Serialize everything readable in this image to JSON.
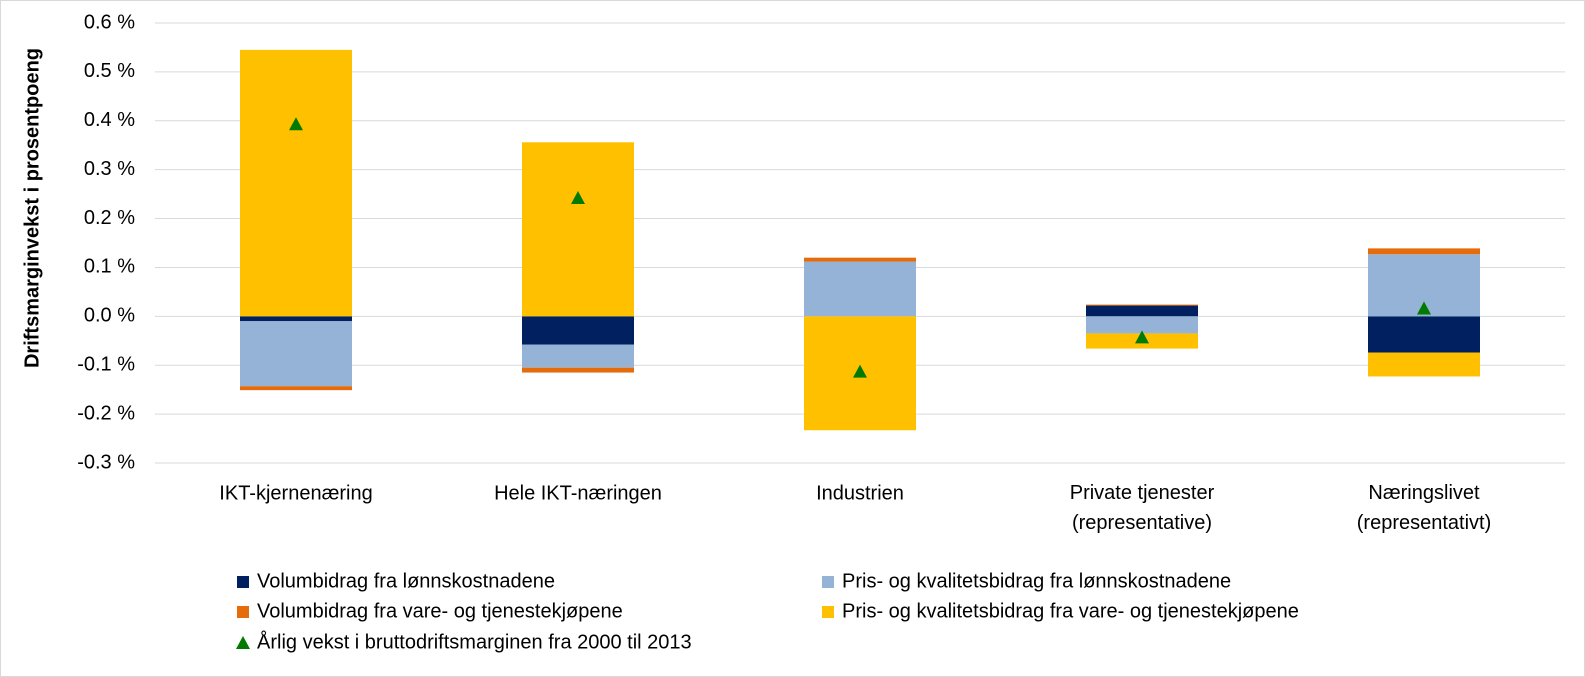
{
  "chart_data": {
    "type": "bar",
    "stacked": true,
    "y_label": "Driftsmarginvekst i prosentpoeng",
    "categories": [
      "IKT-kjernenæring",
      "Hele IKT-næringen",
      "Industrien",
      "Private tjenester\n(representative)",
      "Næringslivet\n(representativt)"
    ],
    "series": [
      {
        "name": "Volumbidrag fra lønnskostnadene",
        "color": "#002060",
        "values": [
          -0.01,
          -0.058,
          0,
          0.022,
          -0.074
        ]
      },
      {
        "name": "Pris- og kvalitetsbidrag fra lønnskostnadene",
        "color": "#95b3d7",
        "values": [
          -0.133,
          -0.047,
          0.112,
          -0.035,
          0.127
        ]
      },
      {
        "name": "Volumbidrag fra vare- og tjenestekjøpene",
        "color": "#e46c0a",
        "values": [
          -0.008,
          -0.01,
          0.008,
          0.002,
          0.012
        ]
      },
      {
        "name": "Pris- og kvalitetsbidrag fra vare- og tjenestekjøpene",
        "color": "#ffc000",
        "values": [
          0.545,
          0.356,
          -0.233,
          -0.031,
          -0.049
        ]
      },
      {
        "name": "Årlig vekst i bruttodriftsmarginen fra 2000 til 2013",
        "color": "#007a00",
        "type": "scatter",
        "values": [
          0.393,
          0.242,
          -0.113,
          -0.043,
          0.016
        ]
      }
    ],
    "ylim": [
      -0.3,
      0.6
    ],
    "yticks": [
      {
        "value": -0.3,
        "label": "-0.3 %"
      },
      {
        "value": -0.2,
        "label": "-0.2 %"
      },
      {
        "value": -0.1,
        "label": "-0.1 %"
      },
      {
        "value": 0,
        "label": "0.0 %"
      },
      {
        "value": 0.1,
        "label": "0.1 %"
      },
      {
        "value": 0.2,
        "label": "0.2 %"
      },
      {
        "value": 0.3,
        "label": "0.3 %"
      },
      {
        "value": 0.4,
        "label": "0.4 %"
      },
      {
        "value": 0.5,
        "label": "0.5 %"
      },
      {
        "value": 0.6,
        "label": "0.6 %"
      }
    ],
    "grid": true
  }
}
